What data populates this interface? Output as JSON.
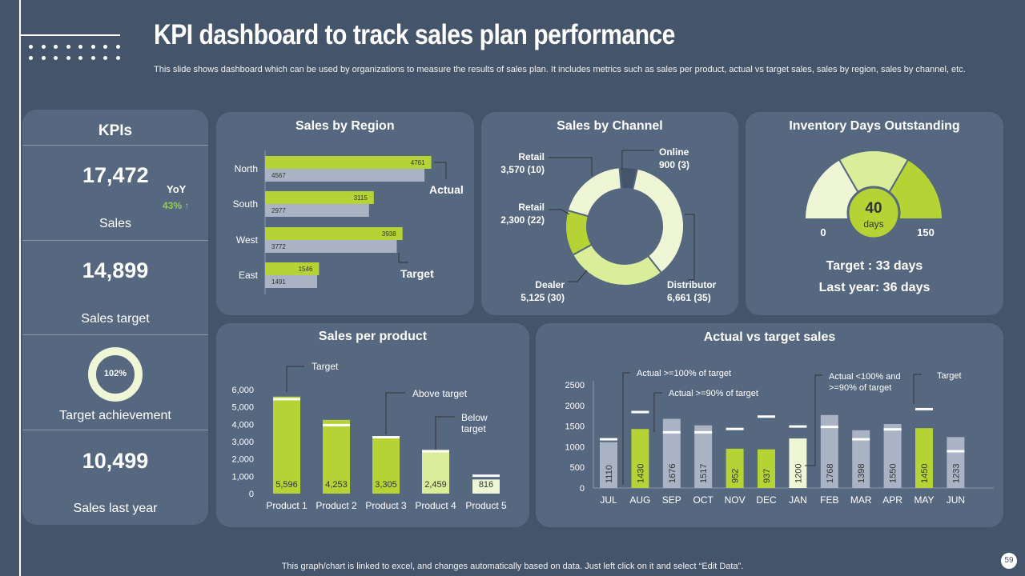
{
  "title": "KPI dashboard to track sales plan performance",
  "subtitle": "This slide shows dashboard which can be used by organizations to measure the results of sales plan. It includes metrics such as sales per product, actual vs target sales, sales by region, sales by channel, etc.",
  "kpis": {
    "heading": "KPIs",
    "sales_value": "17,472",
    "yoy_label": "YoY",
    "yoy_value": "43%",
    "yoy_arrow": "↑",
    "sales_label": "Sales",
    "target_value": "14,899",
    "target_label": "Sales target",
    "achievement_pct": "102%",
    "achievement_label": "Target achievement",
    "last_year_value": "10,499",
    "last_year_label": "Sales last year"
  },
  "colors": {
    "background": "#44546a",
    "card": "#566780",
    "lime": "#b5d334",
    "light_lime": "#daed99",
    "pale": "#eef6d6",
    "gray_bar": "#a9b3c3",
    "yoy_green": "#92d050"
  },
  "chart_data": [
    {
      "id": "region",
      "type": "bar",
      "orientation": "horizontal",
      "title": "Sales by Region",
      "categories": [
        "North",
        "South",
        "West",
        "East"
      ],
      "series": [
        {
          "name": "Actual",
          "values": [
            4761,
            3115,
            3938,
            1546
          ]
        },
        {
          "name": "Target",
          "values": [
            4567,
            2977,
            3772,
            1491
          ]
        }
      ],
      "annotations": [
        "Actual",
        "Target"
      ]
    },
    {
      "id": "channel",
      "type": "pie",
      "title": "Sales by Channel",
      "slices": [
        {
          "label": "Online",
          "text": "900 (3)",
          "value": 900
        },
        {
          "label": "Distributor",
          "text": "6,661 (35)",
          "value": 6661
        },
        {
          "label": "Dealer",
          "text": "5,125 (30)",
          "value": 5125
        },
        {
          "label": "Retail",
          "text": "2,300 (22)",
          "value": 2300
        },
        {
          "label": "Retail",
          "text": "3,570 (10)",
          "value": 3570
        }
      ]
    },
    {
      "id": "inventory",
      "type": "gauge",
      "title": "Inventory Days Outstanding",
      "value": 40,
      "unit": "days",
      "min": 0,
      "max": 150,
      "min_label": "0",
      "max_label": "150",
      "target_text": "Target : 33 days",
      "last_year_text": "Last year: 36 days"
    },
    {
      "id": "product",
      "type": "bar",
      "title": "Sales per product",
      "categories": [
        "Product 1",
        "Product 2",
        "Product 3",
        "Product 4",
        "Product 5"
      ],
      "values": [
        5596,
        4253,
        3305,
        2459,
        816
      ],
      "value_labels": [
        "5,596",
        "4,253",
        "3,305",
        "2,459",
        "816"
      ],
      "targets": [
        5450,
        3950,
        3250,
        2450,
        1030
      ],
      "ylim": [
        0,
        6000
      ],
      "yticks": [
        0,
        1000,
        2000,
        3000,
        4000,
        5000,
        6000
      ],
      "ytick_labels": [
        "0",
        "1,000",
        "2,000",
        "3,000",
        "4,000",
        "5,000",
        "6,000"
      ],
      "callouts": [
        "Target",
        "Above target",
        "Below target"
      ]
    },
    {
      "id": "monthly",
      "type": "bar",
      "title": "Actual vs target sales",
      "categories": [
        "JUL",
        "AUG",
        "SEP",
        "OCT",
        "NOV",
        "DEC",
        "JAN",
        "FEB",
        "MAR",
        "APR",
        "MAY",
        "JUN"
      ],
      "values": [
        1110,
        1430,
        1676,
        1517,
        952,
        937,
        1200,
        1768,
        1398,
        1550,
        1450,
        1233
      ],
      "value_labels": [
        "1110",
        "1430",
        "1676",
        "1517",
        "952",
        "937",
        "1200",
        "1768",
        "1398",
        "1550",
        "1450",
        "1233"
      ],
      "targets": [
        1180,
        1840,
        1350,
        1350,
        1430,
        1730,
        1490,
        1480,
        1180,
        1420,
        1910,
        890
      ],
      "status": [
        "gray",
        "lime",
        "gray",
        "gray",
        "lime",
        "lime",
        "pale",
        "gray",
        "gray",
        "gray",
        "lime",
        "gray"
      ],
      "ylim": [
        0,
        2500
      ],
      "yticks": [
        0,
        500,
        1000,
        1500,
        2000,
        2500
      ],
      "ytick_labels": [
        "0",
        "500",
        "1000",
        "1500",
        "2000",
        "2500"
      ],
      "callouts": [
        "Actual >=100% of target",
        "Actual >=90% of target",
        "Actual <100% and",
        ">=90% of target",
        "Target"
      ]
    }
  ],
  "footer": "This graph/chart is linked to excel,  and changes automatically based on data. Just left click on it and select “Edit Data”.",
  "page_number": "59"
}
